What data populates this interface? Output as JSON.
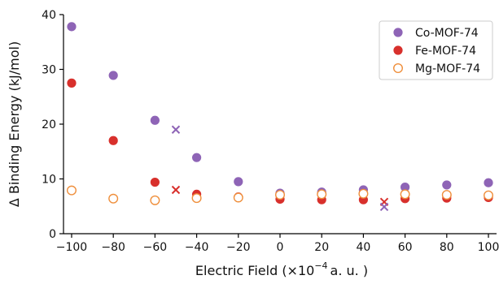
{
  "chart_data": {
    "type": "scatter",
    "xlabel_prefix": "Electric Field (×10",
    "xlabel_exp": "−4",
    "xlabel_suffix": "a. u. )",
    "ylabel": "Δ Binding Energy (kJ/mol)",
    "xlim": [
      -100,
      100
    ],
    "ylim": [
      0,
      40
    ],
    "xticks": [
      -100,
      -80,
      -60,
      -40,
      -20,
      0,
      20,
      40,
      60,
      80,
      100
    ],
    "xtick_labels": [
      "−100",
      "−80",
      "−60",
      "−40",
      "−20",
      "0",
      "20",
      "40",
      "60",
      "80",
      "100"
    ],
    "yticks": [
      0,
      10,
      20,
      30,
      40
    ],
    "ytick_labels": [
      "0",
      "10",
      "20",
      "30",
      "40"
    ],
    "grid": false,
    "legend_position": "top-right",
    "series": [
      {
        "name": "Co-MOF-74",
        "color": "#8e64b6",
        "marker": "filled-circle",
        "x": [
          -100,
          -80,
          -60,
          -40,
          -20,
          0,
          20,
          40,
          60,
          80,
          100
        ],
        "y": [
          37.8,
          28.9,
          20.7,
          13.9,
          9.5,
          7.4,
          7.6,
          8.0,
          8.5,
          8.9,
          9.3
        ]
      },
      {
        "name": "Fe-MOF-74",
        "color": "#d8302c",
        "marker": "filled-circle",
        "x": [
          -100,
          -80,
          -60,
          -40,
          -20,
          0,
          20,
          40,
          60,
          80,
          100
        ],
        "y": [
          27.5,
          17.0,
          9.4,
          7.2,
          6.7,
          6.3,
          6.2,
          6.2,
          6.4,
          6.5,
          6.6
        ]
      },
      {
        "name": "Mg-MOF-74",
        "color": "#ef8f3c",
        "marker": "open-circle",
        "x": [
          -100,
          -80,
          -60,
          -40,
          -20,
          0,
          20,
          40,
          60,
          80,
          100
        ],
        "y": [
          7.9,
          6.4,
          6.1,
          6.5,
          6.6,
          7.1,
          7.2,
          7.3,
          7.2,
          7.1,
          7.0
        ]
      }
    ],
    "cross_markers": [
      {
        "color": "#8e64b6",
        "x": -50,
        "y": 19.0
      },
      {
        "color": "#d8302c",
        "x": -50,
        "y": 8.0
      },
      {
        "color": "#d8302c",
        "x": 50,
        "y": 5.8
      },
      {
        "color": "#8e64b6",
        "x": 50,
        "y": 4.9
      }
    ]
  }
}
